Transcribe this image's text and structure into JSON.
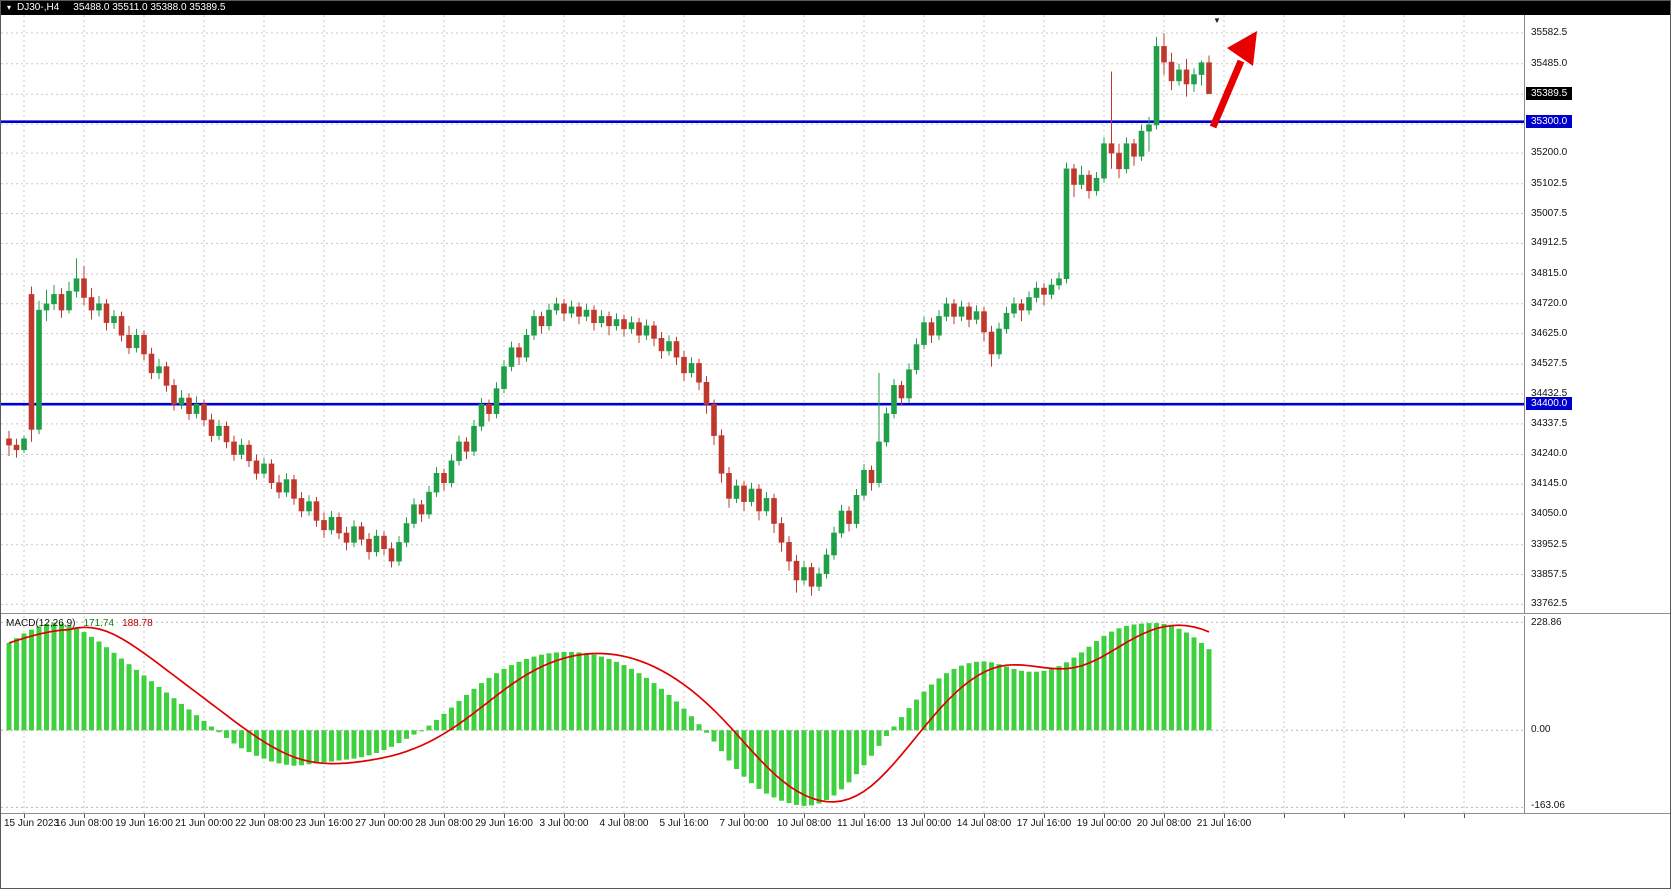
{
  "chart_data": [
    {
      "type": "candlestick",
      "title": "DJ30-,H4",
      "ohlc_display": "35488.0 35511.0 35388.0 35389.5",
      "current_price": 35389.5,
      "current_price_label": "35389.5",
      "ylim": [
        33735,
        35640
      ],
      "grid_levels": [
        35582.5,
        35485.0,
        35387.5,
        35292.5,
        35200.0,
        35102.5,
        35007.5,
        34912.5,
        34815.0,
        34720.0,
        34625.0,
        34527.5,
        34432.5,
        34337.5,
        34240.0,
        34145.0,
        34050.0,
        33952.5,
        33857.5,
        33762.5
      ],
      "axis_labels": [
        35582.5,
        35485.0,
        35200.0,
        35102.5,
        35007.5,
        34912.5,
        34815.0,
        34720.0,
        34625.0,
        34527.5,
        34432.5,
        34337.5,
        34240.0,
        34145.0,
        34050.0,
        33952.5,
        33857.5,
        33762.5
      ],
      "hlines": [
        {
          "value": 35300.0,
          "label": "35300.0"
        },
        {
          "value": 34400.0,
          "label": "34400.0"
        }
      ],
      "first_label_bar": 2,
      "bars_per_label": 8,
      "x_labels": [
        "15 Jun 2023",
        "16 Jun 08:00",
        "19 Jun 16:00",
        "21 Jun 00:00",
        "22 Jun 08:00",
        "23 Jun 16:00",
        "27 Jun 00:00",
        "28 Jun 08:00",
        "29 Jun 16:00",
        "3 Jul 00:00",
        "4 Jul 08:00",
        "5 Jul 16:00",
        "7 Jul 00:00",
        "10 Jul 08:00",
        "11 Jul 16:00",
        "13 Jul 00:00",
        "14 Jul 08:00",
        "17 Jul 16:00",
        "19 Jul 00:00",
        "20 Jul 08:00",
        "21 Jul 16:00"
      ],
      "colors": {
        "up": "#1fa048",
        "down": "#c0382d",
        "hline": "#0000d2",
        "grid": "#c9c9c9",
        "badge_current": "#000000",
        "badge_hline": "#0000cd"
      },
      "bars": [
        [
          34290,
          34315,
          34235,
          34270
        ],
        [
          34270,
          34290,
          34230,
          34255
        ],
        [
          34255,
          34300,
          34245,
          34290
        ],
        [
          34750,
          34775,
          34280,
          34320
        ],
        [
          34320,
          34730,
          34305,
          34700
        ],
        [
          34700,
          34765,
          34665,
          34720
        ],
        [
          34720,
          34780,
          34700,
          34750
        ],
        [
          34750,
          34770,
          34675,
          34700
        ],
        [
          34700,
          34790,
          34690,
          34760
        ],
        [
          34760,
          34865,
          34740,
          34800
        ],
        [
          34800,
          34840,
          34715,
          34740
        ],
        [
          34740,
          34770,
          34670,
          34700
        ],
        [
          34700,
          34745,
          34680,
          34720
        ],
        [
          34720,
          34735,
          34635,
          34660
        ],
        [
          34660,
          34700,
          34640,
          34680
        ],
        [
          34680,
          34695,
          34600,
          34620
        ],
        [
          34620,
          34650,
          34560,
          34580
        ],
        [
          34580,
          34640,
          34565,
          34620
        ],
        [
          34620,
          34635,
          34540,
          34560
        ],
        [
          34560,
          34580,
          34480,
          34500
        ],
        [
          34500,
          34545,
          34480,
          34520
        ],
        [
          34520,
          34535,
          34440,
          34460
        ],
        [
          34460,
          34480,
          34380,
          34400
        ],
        [
          34400,
          34445,
          34385,
          34420
        ],
        [
          34420,
          34435,
          34350,
          34370
        ],
        [
          34370,
          34425,
          34355,
          34400
        ],
        [
          34400,
          34415,
          34330,
          34350
        ],
        [
          34350,
          34370,
          34280,
          34300
        ],
        [
          34300,
          34350,
          34285,
          34330
        ],
        [
          34330,
          34345,
          34260,
          34280
        ],
        [
          34280,
          34300,
          34220,
          34240
        ],
        [
          34240,
          34290,
          34225,
          34270
        ],
        [
          34270,
          34285,
          34200,
          34220
        ],
        [
          34220,
          34240,
          34160,
          34180
        ],
        [
          34180,
          34230,
          34165,
          34210
        ],
        [
          34210,
          34225,
          34130,
          34150
        ],
        [
          34150,
          34175,
          34100,
          34120
        ],
        [
          34120,
          34180,
          34105,
          34160
        ],
        [
          34160,
          34175,
          34080,
          34100
        ],
        [
          34100,
          34120,
          34040,
          34060
        ],
        [
          34060,
          34110,
          34045,
          34090
        ],
        [
          34090,
          34105,
          34010,
          34030
        ],
        [
          34030,
          34055,
          33975,
          34000
        ],
        [
          34000,
          34060,
          33985,
          34040
        ],
        [
          34040,
          34055,
          33970,
          33990
        ],
        [
          33990,
          34010,
          33935,
          33960
        ],
        [
          33960,
          34030,
          33945,
          34010
        ],
        [
          34010,
          34025,
          33950,
          33970
        ],
        [
          33970,
          33990,
          33905,
          33930
        ],
        [
          33930,
          34000,
          33915,
          33980
        ],
        [
          33980,
          33995,
          33920,
          33940
        ],
        [
          33940,
          33960,
          33880,
          33900
        ],
        [
          33900,
          33980,
          33885,
          33960
        ],
        [
          33960,
          34040,
          33945,
          34020
        ],
        [
          34020,
          34100,
          34005,
          34080
        ],
        [
          34080,
          34095,
          34025,
          34050
        ],
        [
          34050,
          34140,
          34035,
          34120
        ],
        [
          34120,
          34200,
          34105,
          34180
        ],
        [
          34180,
          34195,
          34125,
          34150
        ],
        [
          34150,
          34240,
          34135,
          34220
        ],
        [
          34220,
          34300,
          34205,
          34280
        ],
        [
          34280,
          34295,
          34225,
          34250
        ],
        [
          34250,
          34350,
          34235,
          34330
        ],
        [
          34330,
          34420,
          34315,
          34400
        ],
        [
          34400,
          34415,
          34345,
          34370
        ],
        [
          34370,
          34470,
          34355,
          34450
        ],
        [
          34450,
          34540,
          34435,
          34520
        ],
        [
          34520,
          34600,
          34505,
          34580
        ],
        [
          34580,
          34595,
          34525,
          34550
        ],
        [
          34550,
          34640,
          34535,
          34620
        ],
        [
          34620,
          34700,
          34605,
          34680
        ],
        [
          34680,
          34695,
          34625,
          34650
        ],
        [
          34650,
          34720,
          34635,
          34700
        ],
        [
          34700,
          34740,
          34685,
          34720
        ],
        [
          34720,
          34735,
          34665,
          34690
        ],
        [
          34690,
          34730,
          34675,
          34710
        ],
        [
          34710,
          34725,
          34655,
          34680
        ],
        [
          34680,
          34720,
          34665,
          34700
        ],
        [
          34700,
          34715,
          34635,
          34660
        ],
        [
          34660,
          34700,
          34645,
          34680
        ],
        [
          34680,
          34695,
          34620,
          34650
        ],
        [
          34650,
          34690,
          34635,
          34670
        ],
        [
          34670,
          34685,
          34615,
          34640
        ],
        [
          34640,
          34680,
          34625,
          34660
        ],
        [
          34660,
          34675,
          34595,
          34620
        ],
        [
          34620,
          34670,
          34605,
          34650
        ],
        [
          34650,
          34665,
          34585,
          34610
        ],
        [
          34610,
          34630,
          34545,
          34570
        ],
        [
          34570,
          34620,
          34555,
          34600
        ],
        [
          34600,
          34615,
          34525,
          34550
        ],
        [
          34550,
          34570,
          34475,
          34500
        ],
        [
          34500,
          34550,
          34485,
          34530
        ],
        [
          34530,
          34545,
          34445,
          34470
        ],
        [
          34470,
          34490,
          34370,
          34400
        ],
        [
          34400,
          34415,
          34270,
          34300
        ],
        [
          34300,
          34320,
          34150,
          34180
        ],
        [
          34180,
          34200,
          34070,
          34100
        ],
        [
          34100,
          34160,
          34085,
          34140
        ],
        [
          34140,
          34155,
          34060,
          34090
        ],
        [
          34090,
          34150,
          34075,
          34130
        ],
        [
          34130,
          34145,
          34030,
          34060
        ],
        [
          34060,
          34120,
          34045,
          34100
        ],
        [
          34100,
          34115,
          33990,
          34020
        ],
        [
          34020,
          34040,
          33930,
          33960
        ],
        [
          33960,
          33980,
          33870,
          33900
        ],
        [
          33900,
          33920,
          33800,
          33840
        ],
        [
          33840,
          33900,
          33825,
          33880
        ],
        [
          33880,
          33895,
          33790,
          33820
        ],
        [
          33820,
          33880,
          33805,
          33860
        ],
        [
          33860,
          33940,
          33845,
          33920
        ],
        [
          33920,
          34010,
          33905,
          33990
        ],
        [
          33990,
          34080,
          33975,
          34060
        ],
        [
          34060,
          34075,
          33995,
          34020
        ],
        [
          34020,
          34130,
          34005,
          34110
        ],
        [
          34110,
          34210,
          34095,
          34190
        ],
        [
          34190,
          34205,
          34125,
          34150
        ],
        [
          34150,
          34500,
          34135,
          34280
        ],
        [
          34280,
          34390,
          34265,
          34370
        ],
        [
          34370,
          34480,
          34355,
          34460
        ],
        [
          34460,
          34475,
          34395,
          34420
        ],
        [
          34420,
          34530,
          34405,
          34510
        ],
        [
          34510,
          34610,
          34495,
          34590
        ],
        [
          34590,
          34680,
          34575,
          34660
        ],
        [
          34660,
          34675,
          34595,
          34620
        ],
        [
          34620,
          34700,
          34605,
          34680
        ],
        [
          34680,
          34740,
          34665,
          34720
        ],
        [
          34720,
          34735,
          34655,
          34680
        ],
        [
          34680,
          34730,
          34665,
          34710
        ],
        [
          34710,
          34725,
          34645,
          34670
        ],
        [
          34670,
          34715,
          34655,
          34695
        ],
        [
          34695,
          34710,
          34600,
          34630
        ],
        [
          34630,
          34650,
          34520,
          34560
        ],
        [
          34560,
          34660,
          34545,
          34640
        ],
        [
          34640,
          34710,
          34625,
          34690
        ],
        [
          34690,
          34740,
          34675,
          34720
        ],
        [
          34720,
          34735,
          34665,
          34700
        ],
        [
          34700,
          34760,
          34685,
          34740
        ],
        [
          34740,
          34790,
          34725,
          34770
        ],
        [
          34770,
          34785,
          34715,
          34750
        ],
        [
          34750,
          34800,
          34735,
          34780
        ],
        [
          34780,
          34820,
          34765,
          34800
        ],
        [
          34800,
          35170,
          34785,
          35150
        ],
        [
          35150,
          35165,
          35060,
          35100
        ],
        [
          35100,
          35160,
          35085,
          35130
        ],
        [
          35130,
          35145,
          35055,
          35080
        ],
        [
          35080,
          35140,
          35065,
          35120
        ],
        [
          35120,
          35250,
          35105,
          35230
        ],
        [
          35230,
          35460,
          35150,
          35200
        ],
        [
          35200,
          35230,
          35120,
          35150
        ],
        [
          35150,
          35250,
          35135,
          35230
        ],
        [
          35230,
          35245,
          35160,
          35190
        ],
        [
          35190,
          35290,
          35175,
          35270
        ],
        [
          35270,
          35315,
          35205,
          35290
        ],
        [
          35290,
          35570,
          35275,
          35540
        ],
        [
          35540,
          35582,
          35450,
          35490
        ],
        [
          35490,
          35520,
          35400,
          35430
        ],
        [
          35430,
          35485,
          35415,
          35465
        ],
        [
          35465,
          35500,
          35380,
          35420
        ],
        [
          35420,
          35470,
          35395,
          35450
        ],
        [
          35450,
          35495,
          35415,
          35488
        ],
        [
          35488,
          35511,
          35388,
          35389.5
        ]
      ]
    },
    {
      "type": "macd",
      "label": "MACD(12,26,9)",
      "main_display": "171.74",
      "signal_display": "188.78",
      "params": [
        12,
        26,
        9
      ],
      "ylim": [
        -163.06,
        228.86
      ],
      "axis_labels": [
        228.86,
        0,
        -163.06
      ],
      "signal_period": 9,
      "colors": {
        "histogram": "#3fd03f",
        "signal": "#e00000",
        "zero_line": "#b5b5b5"
      },
      "main": [
        185,
        195,
        205,
        213,
        220,
        225,
        228,
        226,
        222,
        216,
        208,
        198,
        188,
        176,
        164,
        152,
        140,
        128,
        116,
        104,
        92,
        80,
        68,
        56,
        44,
        32,
        20,
        8,
        -4,
        -16,
        -28,
        -38,
        -46,
        -54,
        -60,
        -66,
        -70,
        -73,
        -75,
        -74,
        -72,
        -70,
        -68,
        -66,
        -64,
        -62,
        -60,
        -57,
        -53,
        -48,
        -42,
        -35,
        -27,
        -18,
        -9,
        0,
        10,
        22,
        35,
        48,
        62,
        75,
        88,
        100,
        111,
        121,
        130,
        138,
        145,
        151,
        156,
        160,
        163,
        165,
        166,
        166,
        165,
        163,
        160,
        156,
        151,
        145,
        138,
        130,
        121,
        111,
        100,
        88,
        75,
        61,
        46,
        30,
        13,
        -5,
        -24,
        -44,
        -64,
        -82,
        -98,
        -112,
        -124,
        -134,
        -142,
        -149,
        -154,
        -158,
        -160,
        -159,
        -155,
        -148,
        -138,
        -125,
        -110,
        -93,
        -74,
        -54,
        -33,
        -12,
        8,
        28,
        47,
        65,
        82,
        97,
        110,
        121,
        130,
        137,
        142,
        145,
        146,
        144,
        140,
        135,
        130,
        126,
        124,
        124,
        126,
        130,
        136,
        144,
        154,
        165,
        177,
        189,
        200,
        209,
        216,
        221,
        224,
        226,
        227,
        227,
        225,
        221,
        215,
        207,
        197,
        185,
        171.74
      ]
    }
  ],
  "annotations": {
    "arrow": {
      "direction": "up-right",
      "color": "#e60000"
    },
    "anchor_glyph": "▼"
  },
  "titlebar": {
    "icon_glyph": "▾"
  }
}
